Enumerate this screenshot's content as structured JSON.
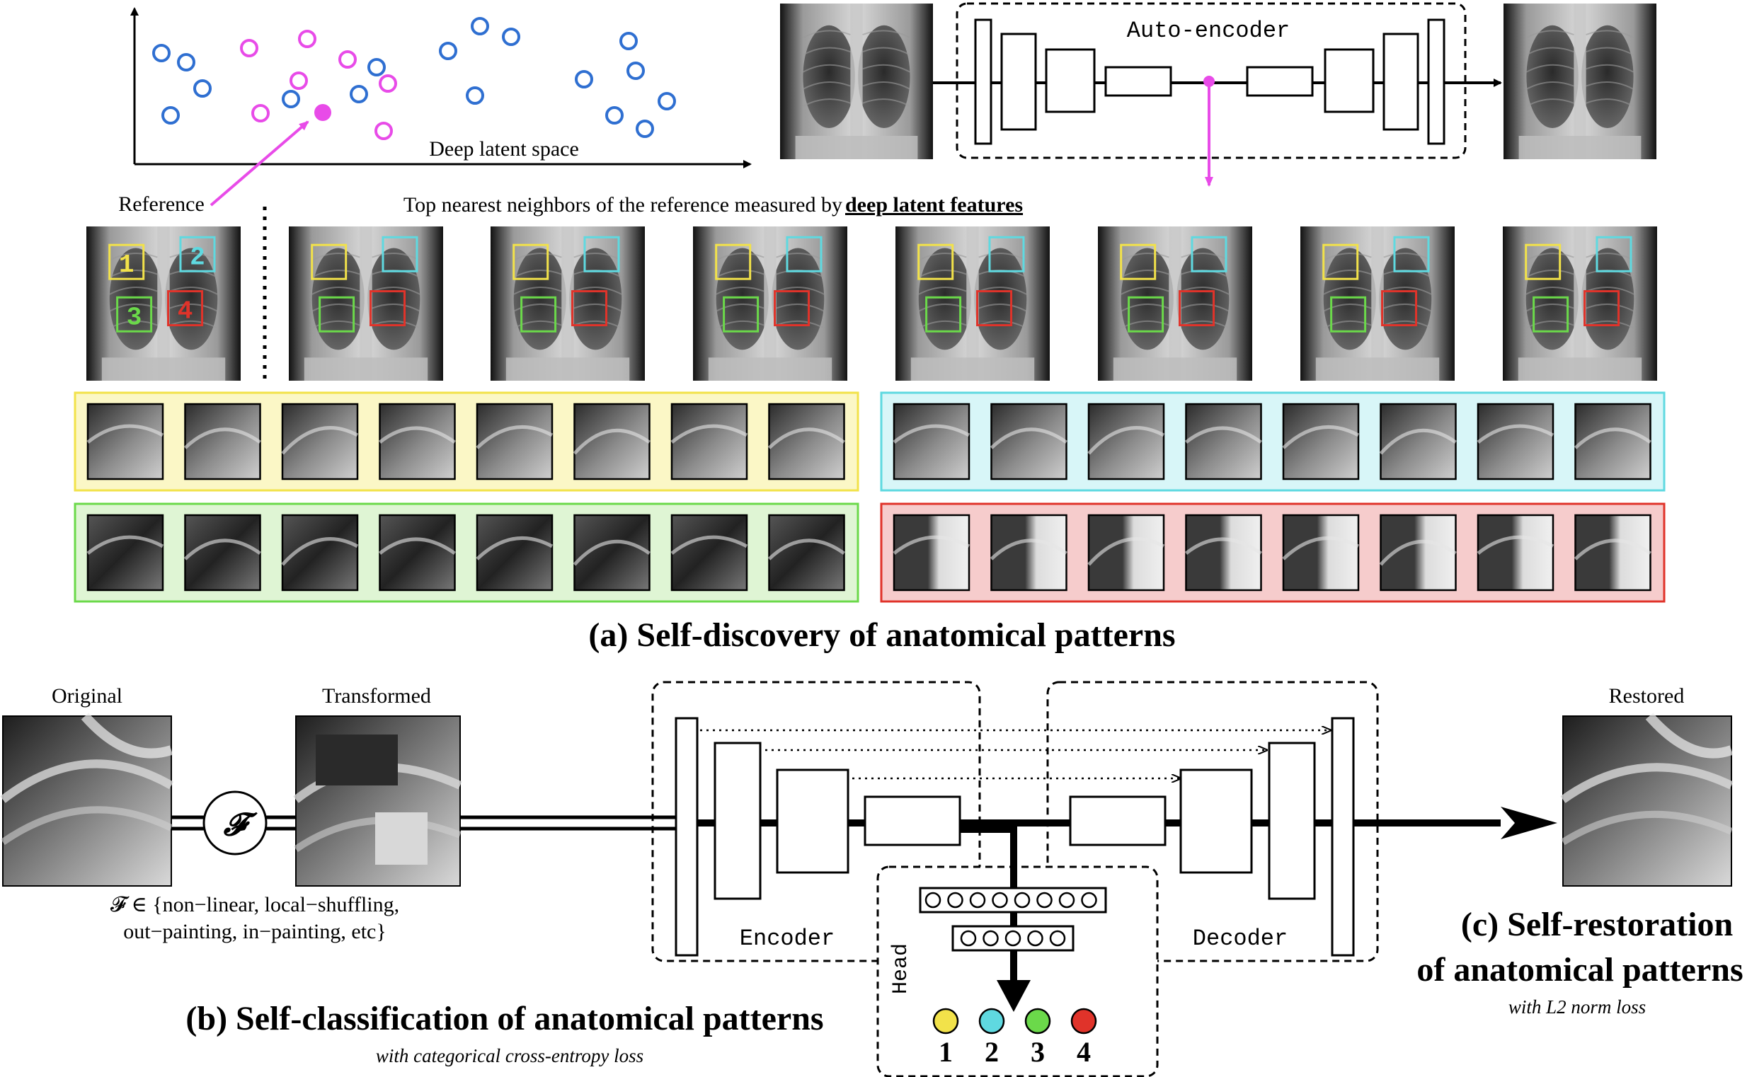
{
  "part_a": {
    "scatter_axis_label": "Deep latent space",
    "reference_label": "Reference",
    "autoencoder_label": "Auto-encoder",
    "neighbors_caption_prefix": "Top nearest neighbors of the reference measured by ",
    "neighbors_caption_emph": "deep latent features",
    "box_labels": [
      "1",
      "2",
      "3",
      "4"
    ],
    "title": "(a) Self-discovery of anatomical patterns"
  },
  "part_b": {
    "original_label": "Original",
    "transformed_label": "Transformed",
    "f_symbol": "𝓕",
    "transform_line1": "𝓕 ∈ {non−linear, local−shuffling,",
    "transform_line2": "out−painting, in−painting, etc}",
    "encoder_label": "Encoder",
    "decoder_label": "Decoder",
    "head_label": "Head",
    "class_numbers": [
      "1",
      "2",
      "3",
      "4"
    ],
    "title": "(b) Self-classification of anatomical patterns",
    "subtitle": "with categorical cross-entropy loss"
  },
  "part_c": {
    "restored_label": "Restored",
    "title_line1": "(c) Self-restoration",
    "title_line2": "of anatomical patterns",
    "subtitle": "with L2 norm loss"
  },
  "colors": {
    "yellow": "#f2e24a",
    "cyan": "#5fd9e0",
    "green": "#6bd94a",
    "red": "#e0332a",
    "magenta": "#e84be8",
    "blue": "#2f6fd1",
    "yellow_bg": "#fbf7c6",
    "cyan_bg": "#d8f6f8",
    "green_bg": "#dff5d4",
    "red_bg": "#f6cccc"
  }
}
